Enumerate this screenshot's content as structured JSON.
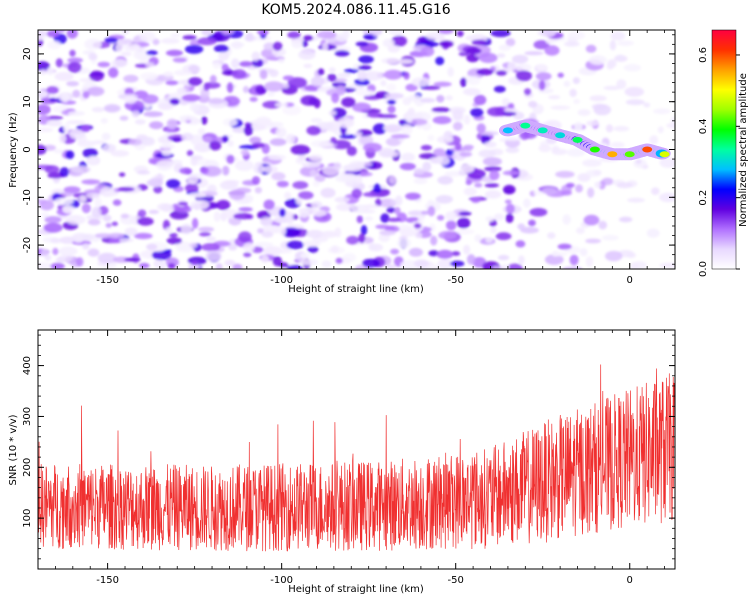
{
  "title": "KOM5.2024.086.11.45.G16",
  "chart_data": [
    {
      "type": "heatmap",
      "xlabel": "Height of straight line (km)",
      "ylabel": "Frequency (Hz)",
      "xlim": [
        -170,
        13
      ],
      "ylim": [
        -25,
        25
      ],
      "xticks": [
        "-150",
        "-100",
        "-50",
        "0"
      ],
      "yticks": [
        "20",
        "10",
        "0",
        "-10",
        "-20"
      ],
      "colorbar": {
        "label": "Normalized spectral amplitude",
        "range": [
          0.0,
          0.67
        ],
        "ticks": [
          "0.0",
          "0.2",
          "0.4",
          "0.6"
        ],
        "colors": [
          "#ffffff",
          "#e8d8ff",
          "#b070ff",
          "#6000e0",
          "#0000ff",
          "#00c0ff",
          "#00ffa0",
          "#00ff00",
          "#a0ff00",
          "#ffff00",
          "#ffa000",
          "#ff3000",
          "#ff0040"
        ]
      },
      "signal_track": [
        {
          "x": -35,
          "y": 4,
          "amp": 0.28
        },
        {
          "x": -30,
          "y": 5,
          "amp": 0.34
        },
        {
          "x": -25,
          "y": 4,
          "amp": 0.32
        },
        {
          "x": -20,
          "y": 3,
          "amp": 0.3
        },
        {
          "x": -15,
          "y": 2,
          "amp": 0.36
        },
        {
          "x": -10,
          "y": 0,
          "amp": 0.4
        },
        {
          "x": -5,
          "y": -1,
          "amp": 0.55
        },
        {
          "x": 0,
          "y": -1,
          "amp": 0.42
        },
        {
          "x": 5,
          "y": 0,
          "amp": 0.6
        },
        {
          "x": 10,
          "y": -1,
          "amp": 0.48
        }
      ]
    },
    {
      "type": "line",
      "xlabel": "Height of straight line (km)",
      "ylabel": "SNR (10 * v/v)",
      "xlim": [
        -170,
        13
      ],
      "ylim": [
        0,
        470
      ],
      "xticks": [
        "-150",
        "-100",
        "-50",
        "0"
      ],
      "yticks": [
        "400",
        "300",
        "200",
        "100"
      ],
      "color": "#f03030",
      "envelope": [
        {
          "x": -170,
          "mean": 125,
          "spread": 85
        },
        {
          "x": -120,
          "mean": 120,
          "spread": 85
        },
        {
          "x": -70,
          "mean": 125,
          "spread": 90
        },
        {
          "x": -40,
          "mean": 140,
          "spread": 100
        },
        {
          "x": -25,
          "mean": 170,
          "spread": 120
        },
        {
          "x": -10,
          "mean": 200,
          "spread": 130
        },
        {
          "x": 13,
          "mean": 240,
          "spread": 150
        }
      ]
    }
  ]
}
